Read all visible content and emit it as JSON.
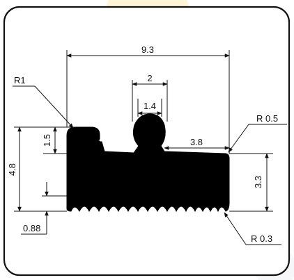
{
  "drawing": {
    "labels": {
      "width_total": "9.3",
      "top_outer": "2",
      "top_inner": "1.4",
      "right_step": "3.8",
      "height_total": "4.8",
      "height_top": "1.5",
      "height_right": "3.3",
      "bottom_gap": "0.88",
      "radius_top_left": "R1",
      "radius_top_right": "R 0.5",
      "radius_bottom_right": "R 0.3"
    },
    "colors": {
      "profile_fill": "#000000",
      "frame_stroke": "#111111",
      "watermark": "#fcd34d"
    }
  }
}
